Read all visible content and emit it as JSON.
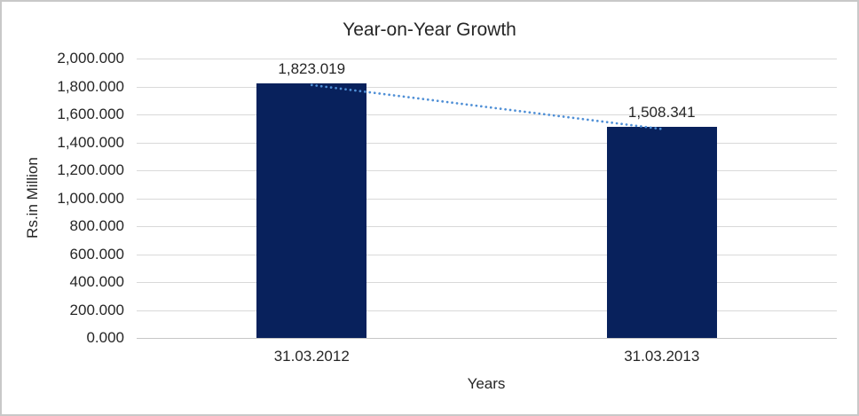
{
  "chart_data": {
    "type": "bar",
    "title": "Year-on-Year Growth",
    "xlabel": "Years",
    "ylabel": "Rs.in Million",
    "categories": [
      "31.03.2012",
      "31.03.2013"
    ],
    "values": [
      1823.019,
      1508.341
    ],
    "data_labels": [
      "1,823.019",
      "1,508.341"
    ],
    "ylim": [
      0,
      2000
    ],
    "ytick_step": 200,
    "ytick_labels": [
      "2,000.000",
      "1,800.000",
      "1,600.000",
      "1,400.000",
      "1,200.000",
      "1,000.000",
      "800.000",
      "600.000",
      "400.000",
      "200.000",
      "0.000"
    ],
    "grid": true,
    "legend": "none",
    "bar_color": "#08215c",
    "trendline": {
      "type": "linear",
      "style": "dotted",
      "color": "#4f8fd6"
    }
  }
}
